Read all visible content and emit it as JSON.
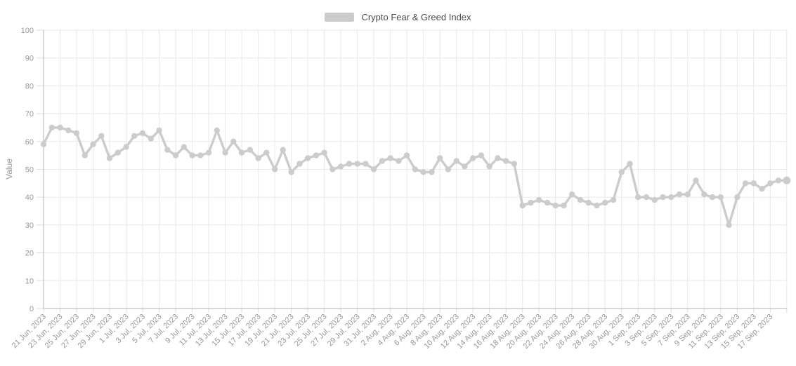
{
  "legend": {
    "label": "Crypto Fear & Greed Index",
    "swatch_color": "#cccccc"
  },
  "y_axis": {
    "title": "Value",
    "tick_labels": [
      "0",
      "10",
      "20",
      "30",
      "40",
      "50",
      "60",
      "70",
      "80",
      "90",
      "100"
    ],
    "min": 0,
    "max": 100
  },
  "x_axis": {
    "tick_every_days": 2,
    "first_label": "21 Jun, 2023",
    "last_label": "17 Sep, 2023"
  },
  "chart_data": {
    "type": "line",
    "title": "Crypto Fear & Greed Index",
    "xlabel": "",
    "ylabel": "Value",
    "ylim": [
      0,
      100
    ],
    "grid": true,
    "legend_position": "top-center",
    "line_color": "#cccccc",
    "marker_color": "#cccccc",
    "grid_color": "#e8e8e8",
    "axis_color": "#b3b3b3",
    "tick_color": "#dddddd",
    "label_color": "#999999",
    "x": [
      "21 Jun, 2023",
      "22 Jun, 2023",
      "23 Jun, 2023",
      "24 Jun, 2023",
      "25 Jun, 2023",
      "26 Jun, 2023",
      "27 Jun, 2023",
      "28 Jun, 2023",
      "29 Jun, 2023",
      "30 Jun, 2023",
      "1 Jul, 2023",
      "2 Jul, 2023",
      "3 Jul, 2023",
      "4 Jul, 2023",
      "5 Jul, 2023",
      "6 Jul, 2023",
      "7 Jul, 2023",
      "8 Jul, 2023",
      "9 Jul, 2023",
      "10 Jul, 2023",
      "11 Jul, 2023",
      "12 Jul, 2023",
      "13 Jul, 2023",
      "14 Jul, 2023",
      "15 Jul, 2023",
      "16 Jul, 2023",
      "17 Jul, 2023",
      "18 Jul, 2023",
      "19 Jul, 2023",
      "20 Jul, 2023",
      "21 Jul, 2023",
      "22 Jul, 2023",
      "23 Jul, 2023",
      "24 Jul, 2023",
      "25 Jul, 2023",
      "26 Jul, 2023",
      "27 Jul, 2023",
      "28 Jul, 2023",
      "29 Jul, 2023",
      "30 Jul, 2023",
      "31 Jul, 2023",
      "1 Aug, 2023",
      "2 Aug, 2023",
      "3 Aug, 2023",
      "4 Aug, 2023",
      "5 Aug, 2023",
      "6 Aug, 2023",
      "7 Aug, 2023",
      "8 Aug, 2023",
      "9 Aug, 2023",
      "10 Aug, 2023",
      "11 Aug, 2023",
      "12 Aug, 2023",
      "13 Aug, 2023",
      "14 Aug, 2023",
      "15 Aug, 2023",
      "16 Aug, 2023",
      "17 Aug, 2023",
      "18 Aug, 2023",
      "19 Aug, 2023",
      "20 Aug, 2023",
      "21 Aug, 2023",
      "22 Aug, 2023",
      "23 Aug, 2023",
      "24 Aug, 2023",
      "25 Aug, 2023",
      "26 Aug, 2023",
      "27 Aug, 2023",
      "28 Aug, 2023",
      "29 Aug, 2023",
      "30 Aug, 2023",
      "31 Aug, 2023",
      "1 Sep, 2023",
      "2 Sep, 2023",
      "3 Sep, 2023",
      "4 Sep, 2023",
      "5 Sep, 2023",
      "6 Sep, 2023",
      "7 Sep, 2023",
      "8 Sep, 2023",
      "9 Sep, 2023",
      "10 Sep, 2023",
      "11 Sep, 2023",
      "12 Sep, 2023",
      "13 Sep, 2023",
      "14 Sep, 2023",
      "15 Sep, 2023",
      "16 Sep, 2023",
      "17 Sep, 2023",
      "18 Sep, 2023",
      "19 Sep, 2023"
    ],
    "values": [
      59,
      65,
      65,
      64,
      63,
      55,
      59,
      62,
      54,
      56,
      58,
      62,
      63,
      61,
      64,
      57,
      55,
      58,
      55,
      55,
      56,
      64,
      56,
      60,
      56,
      57,
      54,
      56,
      50,
      57,
      49,
      52,
      54,
      55,
      56,
      50,
      51,
      52,
      52,
      52,
      50,
      53,
      54,
      53,
      55,
      50,
      49,
      49,
      54,
      50,
      53,
      51,
      54,
      55,
      51,
      54,
      53,
      52,
      37,
      38,
      39,
      38,
      37,
      37,
      41,
      39,
      38,
      37,
      38,
      39,
      49,
      52,
      40,
      40,
      39,
      40,
      40,
      41,
      41,
      46,
      41,
      40,
      40,
      30,
      40,
      45,
      45,
      43,
      45,
      46,
      46
    ]
  }
}
